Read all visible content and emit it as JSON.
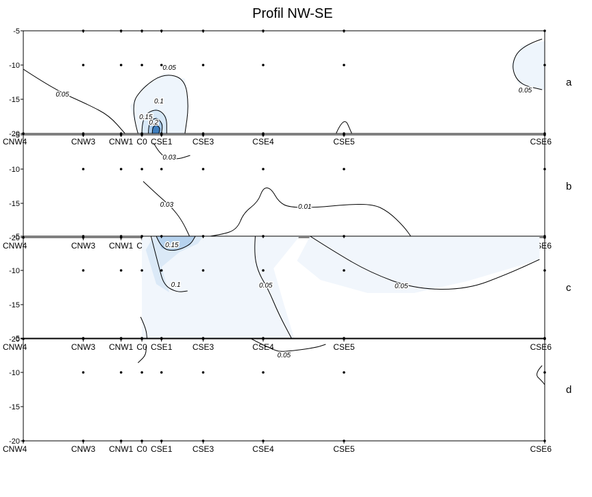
{
  "chart_data": {
    "type": "contour",
    "title": "Profil NW-SE",
    "xlabel": "",
    "ylabel": "",
    "stations": [
      {
        "name": "CNW4",
        "x": 0
      },
      {
        "name": "CNW3",
        "x": 2.3
      },
      {
        "name": "CNW1",
        "x": 3.75
      },
      {
        "name": "C0",
        "x": 4.55
      },
      {
        "name": "CSE1",
        "x": 5.3
      },
      {
        "name": "CSE3",
        "x": 6.9
      },
      {
        "name": "CSE4",
        "x": 9.2
      },
      {
        "name": "CSE5",
        "x": 12.3
      },
      {
        "name": "CSE6",
        "x": 20
      }
    ],
    "xlim": [
      0,
      20
    ],
    "ylim": [
      -20,
      -5
    ],
    "yticks": [
      -5,
      -10,
      -15,
      -20
    ],
    "sample_points": [
      [
        0,
        -20
      ],
      [
        2.3,
        -5
      ],
      [
        2.3,
        -10
      ],
      [
        2.3,
        -20
      ],
      [
        3.75,
        -5
      ],
      [
        3.75,
        -10
      ],
      [
        3.75,
        -20
      ],
      [
        4.55,
        -5
      ],
      [
        4.55,
        -10
      ],
      [
        4.55,
        -20
      ],
      [
        5.3,
        -5
      ],
      [
        5.3,
        -10
      ],
      [
        5.3,
        -20
      ],
      [
        6.9,
        -5
      ],
      [
        6.9,
        -10
      ],
      [
        6.9,
        -20
      ],
      [
        9.2,
        -5
      ],
      [
        9.2,
        -10
      ],
      [
        9.2,
        -20
      ],
      [
        12.3,
        -5
      ],
      [
        12.3,
        -10
      ],
      [
        12.3,
        -20
      ],
      [
        20,
        -5
      ],
      [
        20,
        -10
      ],
      [
        20,
        -20
      ]
    ],
    "panels": [
      {
        "label": "a",
        "fills": [
          {
            "level": 0.05,
            "color": "#eef5fc",
            "points": [
              [
                4.4,
                -20
              ],
              [
                4.1,
                -16
              ],
              [
                4.6,
                -13.2
              ],
              [
                5.4,
                -11.2
              ],
              [
                6.2,
                -12
              ],
              [
                6.35,
                -16
              ],
              [
                6.2,
                -20
              ]
            ]
          },
          {
            "level": 0.1,
            "color": "#d7e8f7",
            "points": [
              [
                4.55,
                -20
              ],
              [
                4.55,
                -17.5
              ],
              [
                5.1,
                -16.3
              ],
              [
                5.5,
                -17.5
              ],
              [
                5.5,
                -20
              ]
            ]
          },
          {
            "level": 0.15,
            "color": "#a9cbea",
            "points": [
              [
                4.8,
                -20
              ],
              [
                4.8,
                -18.4
              ],
              [
                5.1,
                -17.6
              ],
              [
                5.35,
                -18.6
              ],
              [
                5.3,
                -20
              ]
            ]
          },
          {
            "level": 0.2,
            "color": "#3f7fbf",
            "points": [
              [
                4.95,
                -20
              ],
              [
                4.95,
                -19.1
              ],
              [
                5.1,
                -18.7
              ],
              [
                5.25,
                -19.2
              ],
              [
                5.2,
                -20
              ]
            ]
          },
          {
            "level": 0.05,
            "color": "#eef5fc",
            "points": [
              [
                20,
                -6.5
              ],
              [
                19.1,
                -7.2
              ],
              [
                18.7,
                -10
              ],
              [
                19.0,
                -12.8
              ],
              [
                19.9,
                -13.6
              ],
              [
                20,
                -13.6
              ]
            ]
          }
        ],
        "contours": [
          {
            "level": 0.05,
            "label": "0.05",
            "label_at": [
              1.5,
              -14.6
            ],
            "points": [
              [
                0,
                -10.6
              ],
              [
                1.2,
                -13.6
              ],
              [
                2.5,
                -15.8
              ],
              [
                3.3,
                -17.4
              ],
              [
                3.9,
                -20
              ]
            ]
          },
          {
            "level": 0.05,
            "label": "0.05",
            "label_at": [
              5.6,
              -10.7
            ],
            "points": [
              [
                4.4,
                -20
              ],
              [
                4.1,
                -16
              ],
              [
                4.6,
                -13.2
              ],
              [
                5.4,
                -11.2
              ],
              [
                6.2,
                -12
              ],
              [
                6.35,
                -16
              ],
              [
                6.2,
                -20
              ]
            ]
          },
          {
            "level": 0.1,
            "label": "0.1",
            "label_at": [
              5.2,
              -15.6
            ],
            "points": [
              [
                4.55,
                -20
              ],
              [
                4.55,
                -17.5
              ],
              [
                5.1,
                -16.3
              ],
              [
                5.5,
                -17.5
              ],
              [
                5.5,
                -20
              ]
            ]
          },
          {
            "level": 0.15,
            "label": "0.15",
            "label_at": [
              4.7,
              -17.9
            ],
            "points": [
              [
                4.8,
                -20
              ],
              [
                4.8,
                -18.4
              ],
              [
                5.1,
                -17.6
              ],
              [
                5.35,
                -18.6
              ],
              [
                5.3,
                -20
              ]
            ]
          },
          {
            "level": 0.2,
            "label": "0.2",
            "label_at": [
              5.0,
              -18.7
            ],
            "points": [
              [
                4.95,
                -20
              ],
              [
                4.95,
                -19.1
              ],
              [
                5.1,
                -18.7
              ],
              [
                5.25,
                -19.2
              ],
              [
                5.2,
                -20
              ]
            ]
          },
          {
            "level": 0.05,
            "label": "",
            "label_at": null,
            "points": [
              [
                12.0,
                -20
              ],
              [
                12.3,
                -17.4
              ],
              [
                12.6,
                -20
              ]
            ]
          },
          {
            "level": 0.05,
            "label": "0.05",
            "label_at": [
              19.25,
              -14.0
            ],
            "points": [
              [
                19.9,
                -6.2
              ],
              [
                19.1,
                -7.2
              ],
              [
                18.7,
                -10
              ],
              [
                19.0,
                -12.8
              ],
              [
                19.9,
                -13.6
              ]
            ]
          }
        ]
      },
      {
        "label": "b",
        "fills": [],
        "contours": [
          {
            "level": 0.03,
            "label": "0.03",
            "label_at": [
              5.6,
              -8.6
            ],
            "points": [
              [
                5.0,
                -6.2
              ],
              [
                5.3,
                -8.3
              ],
              [
                5.9,
                -8.6
              ],
              [
                6.4,
                -8.0
              ]
            ]
          },
          {
            "level": 0.03,
            "label": "0.03",
            "label_at": [
              5.5,
              -15.5
            ],
            "points": [
              [
                4.6,
                -11.8
              ],
              [
                5.1,
                -13.6
              ],
              [
                5.7,
                -15.6
              ],
              [
                6.1,
                -17.6
              ],
              [
                6.4,
                -20
              ]
            ]
          },
          {
            "level": 0.01,
            "label": "0.01",
            "label_at": [
              10.8,
              -15.8
            ],
            "points": [
              [
                6.8,
                -20
              ],
              [
                7.6,
                -19.6
              ],
              [
                8.2,
                -18.8
              ],
              [
                8.45,
                -16.4
              ],
              [
                9.0,
                -14.8
              ],
              [
                9.2,
                -12.7
              ],
              [
                9.5,
                -12.8
              ],
              [
                9.8,
                -14.8
              ],
              [
                10.2,
                -15.6
              ],
              [
                11.3,
                -15.6
              ],
              [
                12.3,
                -15.2
              ],
              [
                13.4,
                -15.1
              ],
              [
                14.0,
                -16.2
              ],
              [
                14.6,
                -18.4
              ],
              [
                14.9,
                -20
              ]
            ]
          }
        ]
      },
      {
        "label": "c",
        "fills": [
          {
            "level": 0.05,
            "color": "#f1f6fc",
            "points": [
              [
                4.55,
                -5
              ],
              [
                10.6,
                -5
              ],
              [
                19.8,
                -5
              ],
              [
                19.8,
                -8.4
              ],
              [
                18.6,
                -9.8
              ],
              [
                17.0,
                -11.6
              ],
              [
                15.0,
                -13.3
              ],
              [
                13.2,
                -13.3
              ],
              [
                11.4,
                -11.4
              ],
              [
                10.5,
                -8.6
              ],
              [
                11.0,
                -5
              ],
              [
                10.6,
                -5
              ],
              [
                9.6,
                -9.7
              ],
              [
                10.0,
                -15.0
              ],
              [
                10.4,
                -20
              ],
              [
                4.55,
                -20
              ]
            ]
          },
          {
            "level": 0.1,
            "color": "#dbe9f7",
            "points": [
              [
                5.0,
                -5
              ],
              [
                6.9,
                -5
              ],
              [
                6.7,
                -6.1
              ],
              [
                6.0,
                -7.3
              ],
              [
                5.3,
                -9.5
              ],
              [
                5.45,
                -11.5
              ],
              [
                5.6,
                -13.2
              ],
              [
                5.1,
                -12.0
              ],
              [
                4.7,
                -7.0
              ]
            ]
          },
          {
            "level": 0.15,
            "color": "#b6d2ee",
            "points": [
              [
                5.1,
                -5
              ],
              [
                6.6,
                -5
              ],
              [
                6.4,
                -6.3
              ],
              [
                5.8,
                -7.2
              ],
              [
                5.3,
                -6.8
              ]
            ]
          }
        ],
        "contours": [
          {
            "level": 0.1,
            "label": "0.1",
            "label_at": [
              5.85,
              -12.4
            ],
            "points": [
              [
                4.9,
                -5
              ],
              [
                5.2,
                -9.5
              ],
              [
                5.4,
                -12.2
              ],
              [
                5.9,
                -13.2
              ],
              [
                6.3,
                -13.0
              ]
            ]
          },
          {
            "level": 0.15,
            "label": "0.15",
            "label_at": [
              5.7,
              -6.6
            ],
            "points": [
              [
                5.1,
                -5
              ],
              [
                5.3,
                -6.8
              ],
              [
                5.8,
                -7.2
              ],
              [
                6.4,
                -6.3
              ],
              [
                6.6,
                -5
              ]
            ]
          },
          {
            "level": 0.05,
            "label": "0.05",
            "label_at": [
              9.3,
              -12.5
            ],
            "points": [
              [
                8.9,
                -5
              ],
              [
                8.85,
                -7.4
              ],
              [
                9.0,
                -10.2
              ],
              [
                9.4,
                -12.8
              ],
              [
                9.8,
                -16.4
              ],
              [
                10.3,
                -20
              ]
            ]
          },
          {
            "level": 0.05,
            "label": "0.05",
            "label_at": [
              14.5,
              -12.6
            ],
            "points": [
              [
                11.0,
                -5
              ],
              [
                11.9,
                -7.2
              ],
              [
                13.3,
                -10.3
              ],
              [
                15.0,
                -12.7
              ],
              [
                17.0,
                -12.8
              ],
              [
                18.6,
                -10.5
              ],
              [
                19.8,
                -8.4
              ]
            ]
          },
          {
            "level": 0.05,
            "label": "",
            "label_at": null,
            "points": [
              [
                4.5,
                -16.8
              ],
              [
                4.7,
                -18.4
              ],
              [
                4.75,
                -20
              ]
            ]
          }
        ]
      },
      {
        "label": "d",
        "fills": [],
        "contours": [
          {
            "level": 0.05,
            "label": "",
            "label_at": null,
            "points": [
              [
                4.7,
                -6.2
              ],
              [
                4.75,
                -7.3
              ],
              [
                4.4,
                -8.6
              ]
            ]
          },
          {
            "level": 0.05,
            "label": "0.05",
            "label_at": [
              10.0,
              -7.8
            ],
            "points": [
              [
                8.7,
                -5
              ],
              [
                9.6,
                -6.8
              ],
              [
                10.0,
                -7.0
              ],
              [
                11.2,
                -6.4
              ],
              [
                11.6,
                -5.9
              ]
            ]
          },
          {
            "level": 0.05,
            "label": "",
            "label_at": null,
            "points": [
              [
                19.9,
                -9.0
              ],
              [
                19.6,
                -10.2
              ],
              [
                19.9,
                -11.3
              ],
              [
                20,
                -11.8
              ]
            ]
          }
        ]
      }
    ]
  }
}
